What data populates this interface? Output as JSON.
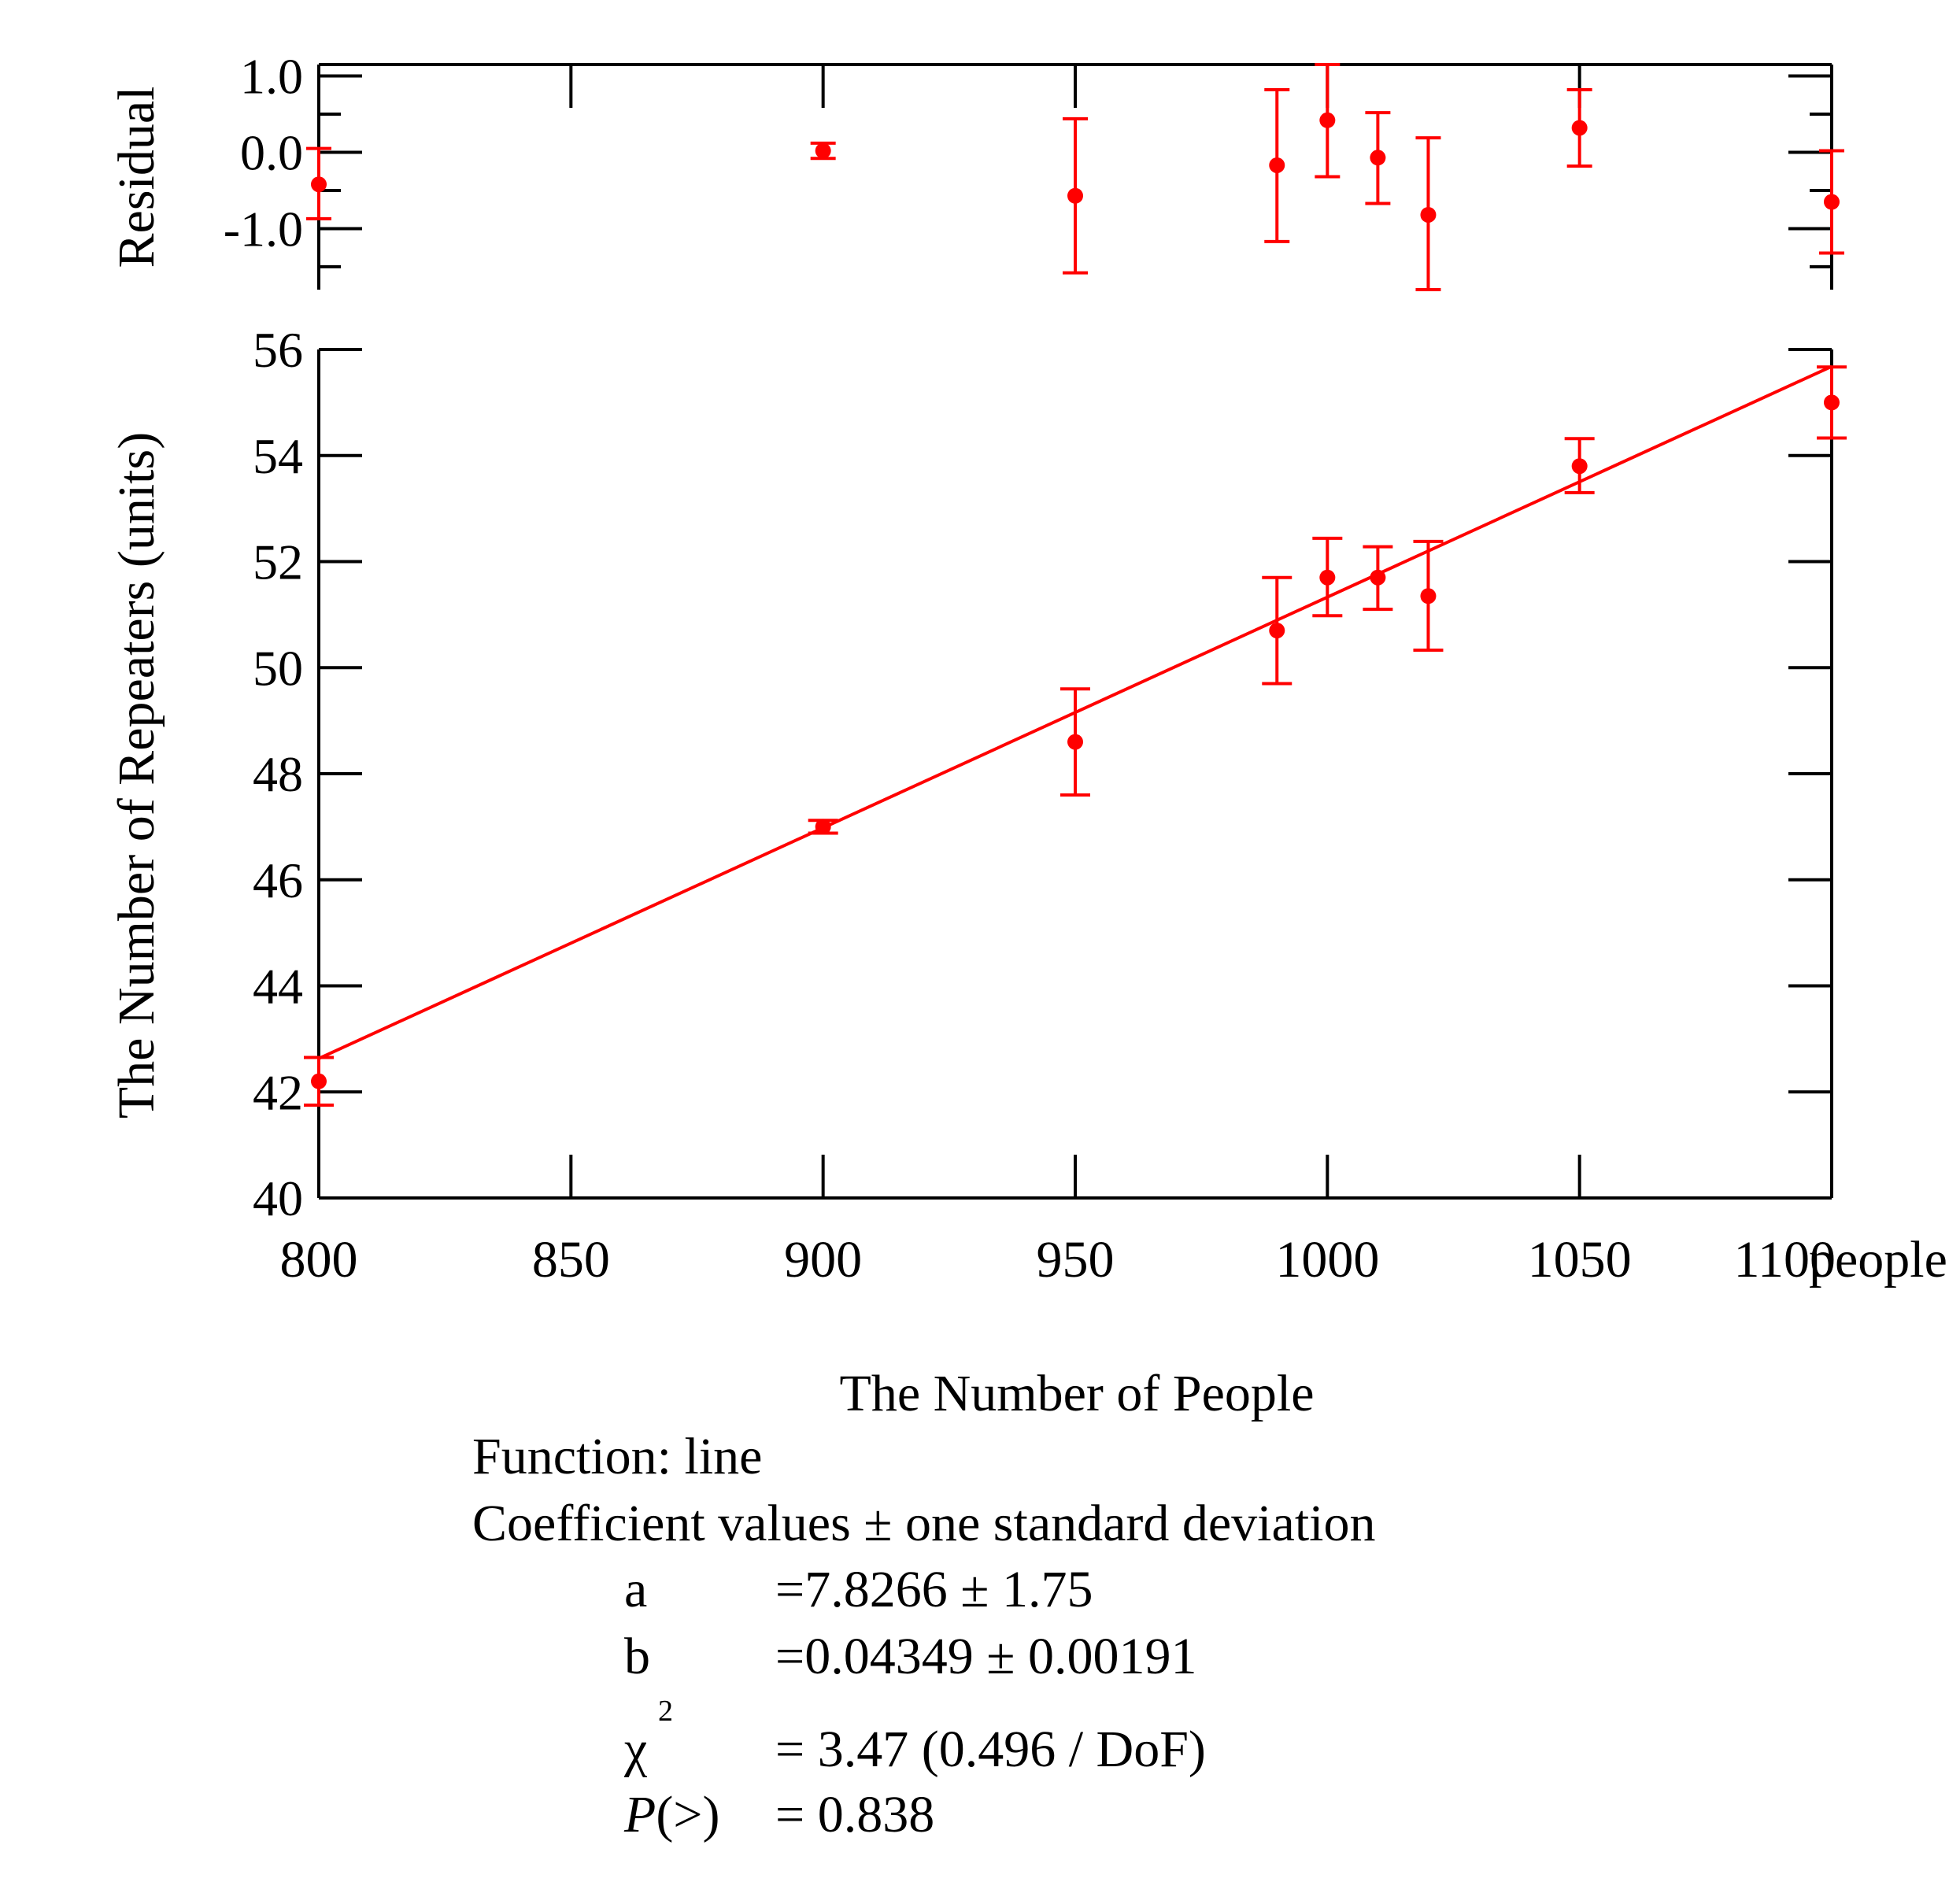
{
  "chart_data": {
    "type": "scatter",
    "x_label": "The Number of People",
    "x_unit": "people",
    "x_ticks": [
      "800",
      "850",
      "900",
      "950",
      "1000",
      "1050",
      "1100"
    ],
    "x_range": [
      800,
      1100
    ],
    "series_color": "#ff0000",
    "residual_panel": {
      "y_label": "Residual",
      "y_range": [
        -1.8,
        1.15
      ],
      "y_ticks": [
        "1.0",
        "0.0",
        "-1.0"
      ],
      "points": [
        {
          "x": 800,
          "y": -0.42,
          "err_low": -0.87,
          "err_high": 0.05
        },
        {
          "x": 900,
          "y": 0.02,
          "err_low": -0.08,
          "err_high": 0.12
        },
        {
          "x": 950,
          "y": -0.57,
          "err_low": -1.58,
          "err_high": 0.44
        },
        {
          "x": 990,
          "y": -0.17,
          "err_low": -1.17,
          "err_high": 0.82
        },
        {
          "x": 1000,
          "y": 0.42,
          "err_low": -0.32,
          "err_high": 1.15
        },
        {
          "x": 1010,
          "y": -0.07,
          "err_low": -0.67,
          "err_high": 0.52
        },
        {
          "x": 1020,
          "y": -0.82,
          "err_low": -1.85,
          "err_high": 0.19
        },
        {
          "x": 1050,
          "y": 0.32,
          "err_low": -0.18,
          "err_high": 0.82
        },
        {
          "x": 1100,
          "y": -0.65,
          "err_low": -1.32,
          "err_high": 0.02
        }
      ]
    },
    "main_panel": {
      "y_label": "The Number of Repeaters (units)",
      "y_range": [
        40,
        56
      ],
      "y_ticks": [
        "40",
        "42",
        "44",
        "46",
        "48",
        "50",
        "52",
        "54",
        "56"
      ],
      "points": [
        {
          "x": 800,
          "y": 42.2,
          "err_low": 41.75,
          "err_high": 42.65
        },
        {
          "x": 900,
          "y": 47.0,
          "err_low": 46.88,
          "err_high": 47.12
        },
        {
          "x": 950,
          "y": 48.6,
          "err_low": 47.6,
          "err_high": 49.6
        },
        {
          "x": 990,
          "y": 50.7,
          "err_low": 49.7,
          "err_high": 51.7
        },
        {
          "x": 1000,
          "y": 51.7,
          "err_low": 50.98,
          "err_high": 52.44
        },
        {
          "x": 1010,
          "y": 51.7,
          "err_low": 51.1,
          "err_high": 52.28
        },
        {
          "x": 1020,
          "y": 51.35,
          "err_low": 50.33,
          "err_high": 52.38
        },
        {
          "x": 1050,
          "y": 53.8,
          "err_low": 53.3,
          "err_high": 54.32
        },
        {
          "x": 1100,
          "y": 55.0,
          "err_low": 54.33,
          "err_high": 55.67
        }
      ],
      "fit_line": {
        "x": [
          800,
          1100
        ],
        "y": [
          42.63,
          55.68
        ]
      }
    }
  },
  "fit_results": {
    "function": "Function: line",
    "coef_header": "Coefficient values ± one standard deviation",
    "rows": {
      "a": {
        "name": "a",
        "value": "=7.8266 ± 1.75"
      },
      "b": {
        "name": "b",
        "value": "=0.04349 ± 0.00191"
      },
      "chi2": {
        "symbol": "χ",
        "superscript": "2",
        "value": "= 3.47 (0.496 / DoF)"
      },
      "p": {
        "name_italic": "P",
        "name_rest": "(>)",
        "value": "= 0.838"
      }
    }
  }
}
